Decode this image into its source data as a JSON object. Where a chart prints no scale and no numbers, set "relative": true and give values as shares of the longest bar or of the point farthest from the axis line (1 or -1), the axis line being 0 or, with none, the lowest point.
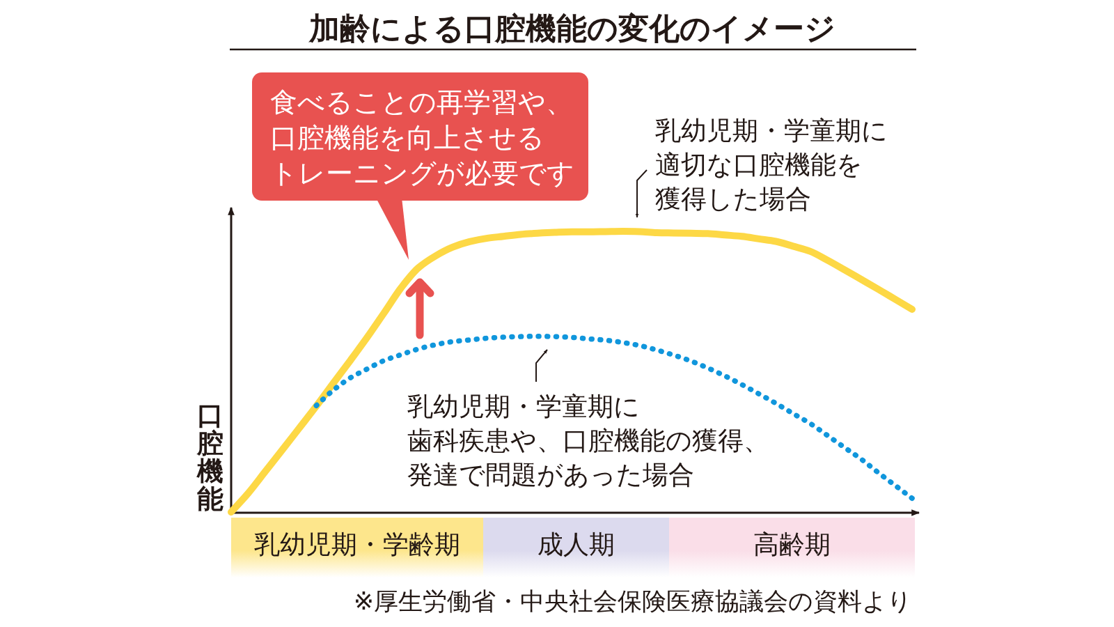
{
  "chart_data": {
    "type": "line",
    "relative": true,
    "title": "加齢による口腔機能の変化のイメージ",
    "ylabel": "口腔機能",
    "categories": [
      null,
      null,
      null,
      null,
      null,
      null,
      null,
      null,
      null,
      null,
      null,
      null,
      null,
      null,
      null,
      null,
      null,
      null,
      null,
      null,
      null,
      null,
      null,
      null,
      null,
      null,
      null,
      null,
      null,
      null,
      null,
      null,
      null,
      null,
      null,
      null,
      null,
      null,
      null,
      null,
      null
    ],
    "series": [
      {
        "name": "乳幼児期・学童期に適切な口腔機能を獲得した場合",
        "color": "#fdd845",
        "line_style": "solid",
        "values": [
          0,
          0.067,
          0.144,
          0.221,
          0.299,
          0.377,
          0.459,
          0.54,
          0.623,
          0.711,
          0.8,
          0.87,
          0.912,
          0.943,
          0.963,
          0.975,
          0.982,
          0.989,
          0.993,
          0.996,
          0.998,
          0.998,
          0.999,
          1.0,
          0.999,
          0.995,
          0.994,
          0.993,
          0.992,
          0.987,
          0.982,
          0.973,
          0.964,
          0.947,
          0.929,
          0.898,
          0.864,
          0.829,
          0.794,
          0.758,
          0.722
        ]
      },
      {
        "name": "乳幼児期・学童期に歯科疾患や、口腔機能の獲得、発達で問題があった場合",
        "color": "#1096dc",
        "line_style": "dotted",
        "values": [
          null,
          null,
          null,
          null,
          null,
          0.379,
          0.434,
          0.478,
          0.51,
          0.54,
          0.561,
          0.581,
          0.596,
          0.607,
          0.613,
          0.619,
          0.623,
          0.625,
          0.626,
          0.625,
          0.622,
          0.617,
          0.612,
          0.604,
          0.593,
          0.577,
          0.559,
          0.538,
          0.513,
          0.485,
          0.454,
          0.421,
          0.387,
          0.351,
          0.316,
          0.274,
          0.231,
          0.189,
          0.141,
          0.095,
          0.049
        ]
      }
    ],
    "annotations": [
      "食べることの再学習や、口腔機能を向上させるトレーニングが必要です",
      "乳幼児期・学齢期",
      "成人期",
      "高齢期",
      "※厚生労働省・中央社会保険医療協議会の資料より"
    ]
  }
}
